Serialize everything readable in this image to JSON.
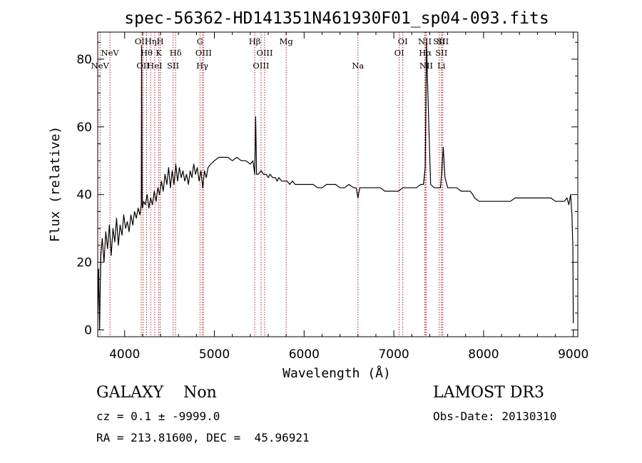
{
  "chart_data": {
    "type": "line",
    "title": "spec-56362-HD141351N461930F01_sp04-093.fits",
    "xlabel": "Wavelength (Å)",
    "ylabel": "Flux (relative)",
    "xlim": [
      3700,
      9050
    ],
    "ylim": [
      -2,
      88
    ],
    "xticks": [
      4000,
      5000,
      6000,
      7000,
      8000,
      9000
    ],
    "yticks": [
      0,
      20,
      40,
      60,
      80
    ],
    "grid": false,
    "line_color": "#000000",
    "marker_color": "#b22222",
    "series": [
      {
        "x": [
          3700,
          3710,
          3720,
          3735,
          3750,
          3770,
          3790,
          3810,
          3830,
          3850,
          3870,
          3890,
          3910,
          3930,
          3950,
          3970,
          3990,
          4010,
          4030,
          4050,
          4070,
          4090,
          4110,
          4130,
          4150,
          4170,
          4185,
          4190,
          4195,
          4200,
          4210,
          4230,
          4250,
          4270,
          4290,
          4310,
          4330,
          4350,
          4370,
          4390,
          4410,
          4430,
          4450,
          4470,
          4490,
          4510,
          4530,
          4550,
          4570,
          4590,
          4610,
          4630,
          4650,
          4670,
          4690,
          4710,
          4730,
          4750,
          4770,
          4790,
          4810,
          4830,
          4850,
          4870,
          4890,
          4910,
          4930,
          4960,
          5000,
          5050,
          5100,
          5150,
          5200,
          5250,
          5300,
          5350,
          5400,
          5430,
          5450,
          5460,
          5470,
          5490,
          5520,
          5550,
          5580,
          5600,
          5620,
          5650,
          5680,
          5700,
          5720,
          5750,
          5780,
          5810,
          5840,
          5870,
          5900,
          5930,
          5960,
          6000,
          6050,
          6100,
          6150,
          6200,
          6250,
          6300,
          6350,
          6400,
          6450,
          6500,
          6550,
          6580,
          6600,
          6620,
          6650,
          6700,
          6750,
          6800,
          6850,
          6900,
          6950,
          7000,
          7050,
          7100,
          7150,
          7200,
          7250,
          7300,
          7330,
          7350,
          7365,
          7375,
          7390,
          7410,
          7450,
          7500,
          7520,
          7535,
          7550,
          7570,
          7600,
          7650,
          7700,
          7750,
          7800,
          7850,
          7880,
          7900,
          7950,
          8000,
          8050,
          8100,
          8150,
          8200,
          8250,
          8300,
          8350,
          8400,
          8450,
          8500,
          8550,
          8600,
          8650,
          8700,
          8750,
          8800,
          8850,
          8900,
          8930,
          8950,
          8970,
          8985,
          8995,
          9000
        ],
        "y": [
          5,
          18,
          0,
          22,
          27,
          20,
          29,
          24,
          31,
          22,
          30,
          26,
          33,
          25,
          31,
          28,
          34,
          30,
          32,
          29,
          34,
          31,
          35,
          33,
          36,
          34,
          37,
          84,
          37,
          36,
          38,
          37,
          40,
          36,
          39,
          37,
          41,
          38,
          42,
          40,
          44,
          41,
          46,
          43,
          48,
          42,
          47,
          43,
          49,
          44,
          48,
          45,
          47,
          44,
          46,
          43,
          47,
          45,
          49,
          46,
          48,
          44,
          47,
          42,
          47,
          45,
          48,
          49,
          50,
          51,
          51,
          51,
          50,
          51,
          50,
          50,
          49,
          50,
          46,
          63,
          46,
          46,
          47,
          46,
          46,
          45,
          46,
          45,
          45,
          44,
          45,
          44,
          44,
          44,
          43,
          44,
          43,
          43,
          43,
          43,
          43,
          43,
          42,
          42,
          43,
          43,
          43,
          42,
          42,
          43,
          42,
          42,
          39,
          42,
          42,
          42,
          42,
          42,
          42,
          41,
          41,
          41,
          41,
          42,
          42,
          42,
          42,
          43,
          43,
          48,
          85,
          74,
          60,
          43,
          42,
          42,
          42,
          47,
          54,
          45,
          42,
          42,
          42,
          41,
          41,
          41,
          40,
          39,
          38,
          38,
          38,
          38,
          38,
          38,
          38,
          38,
          39,
          39,
          39,
          39,
          39,
          39,
          39,
          39,
          39,
          38,
          38,
          38,
          39,
          37,
          40,
          34,
          24,
          2
        ]
      }
    ],
    "lines": [
      {
        "label": "NeV",
        "x": 3726,
        "row": 3
      },
      {
        "label": "NeV",
        "x": 3836,
        "row": 2
      },
      {
        "label": "OII",
        "x": 4185,
        "row": 1
      },
      {
        "label": "OII",
        "x": 4205,
        "row": 3
      },
      {
        "label": "Hθ",
        "x": 4244,
        "row": 2
      },
      {
        "label": "Hη",
        "x": 4290,
        "row": 1
      },
      {
        "label": "HeI",
        "x": 4335,
        "row": 3
      },
      {
        "label": "H",
        "x": 4396,
        "row": 1
      },
      {
        "label": "K",
        "x": 4380,
        "row": 2
      },
      {
        "label": "SII",
        "x": 4540,
        "row": 3
      },
      {
        "label": "Hδ",
        "x": 4568,
        "row": 2
      },
      {
        "label": "G",
        "x": 4840,
        "row": 1
      },
      {
        "label": "OIII",
        "x": 4880,
        "row": 2
      },
      {
        "label": "Hγ",
        "x": 4865,
        "row": 3
      },
      {
        "label": "Hβ",
        "x": 5450,
        "row": 1
      },
      {
        "label": "OIII",
        "x": 5560,
        "row": 2
      },
      {
        "label": "OIII",
        "x": 5520,
        "row": 3
      },
      {
        "label": "Mg",
        "x": 5800,
        "row": 1
      },
      {
        "label": "Na",
        "x": 6600,
        "row": 3
      },
      {
        "label": "OI",
        "x": 7100,
        "row": 1
      },
      {
        "label": "OI",
        "x": 7060,
        "row": 2
      },
      {
        "label": "NII",
        "x": 7345,
        "row": 1
      },
      {
        "label": "Hα",
        "x": 7350,
        "row": 2
      },
      {
        "label": "NII",
        "x": 7360,
        "row": 3
      },
      {
        "label": "SII",
        "x": 7505,
        "row": 1
      },
      {
        "label": "SII",
        "x": 7530,
        "row": 2
      },
      {
        "label": "SII",
        "x": 7545,
        "row": 1
      },
      {
        "label": "Li",
        "x": 7530,
        "row": 3
      }
    ]
  },
  "info": {
    "class_label": "GALAXY    Non",
    "survey": "LAMOST DR3",
    "cz": "cz = 0.1 ± -9999.0",
    "obs_date": "Obs-Date: 20130310",
    "coords": "RA = 213.81600, DEC =  45.96921"
  }
}
